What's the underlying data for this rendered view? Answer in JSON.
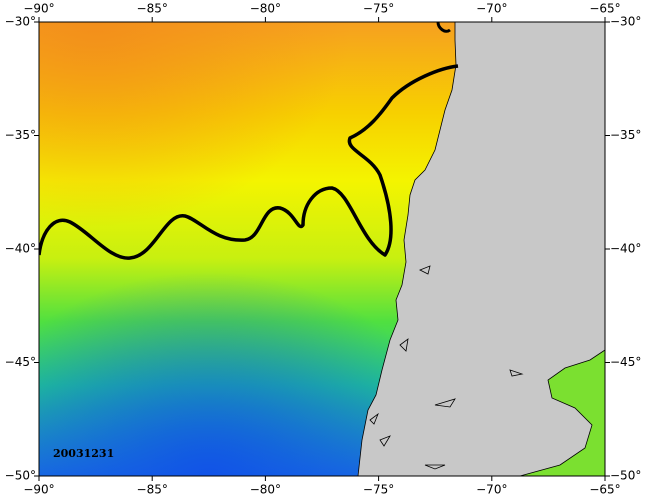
{
  "map": {
    "xlim": [
      -90,
      -65
    ],
    "xticks": [
      {
        "value": -90,
        "label": "−90°"
      },
      {
        "value": -85,
        "label": "−85°"
      },
      {
        "value": -80,
        "label": "−80°"
      },
      {
        "value": -75,
        "label": "−75°"
      },
      {
        "value": -70,
        "label": "−70°"
      },
      {
        "value": -65,
        "label": "−65°"
      }
    ],
    "ylim": [
      -50,
      -30
    ],
    "yticks": [
      {
        "value": -30,
        "label": "−30°"
      },
      {
        "value": -35,
        "label": "−35°"
      },
      {
        "value": -40,
        "label": "−40°"
      },
      {
        "value": -45,
        "label": "−45°"
      },
      {
        "value": -50,
        "label": "−50°"
      }
    ],
    "date_label": "20031231"
  }
}
